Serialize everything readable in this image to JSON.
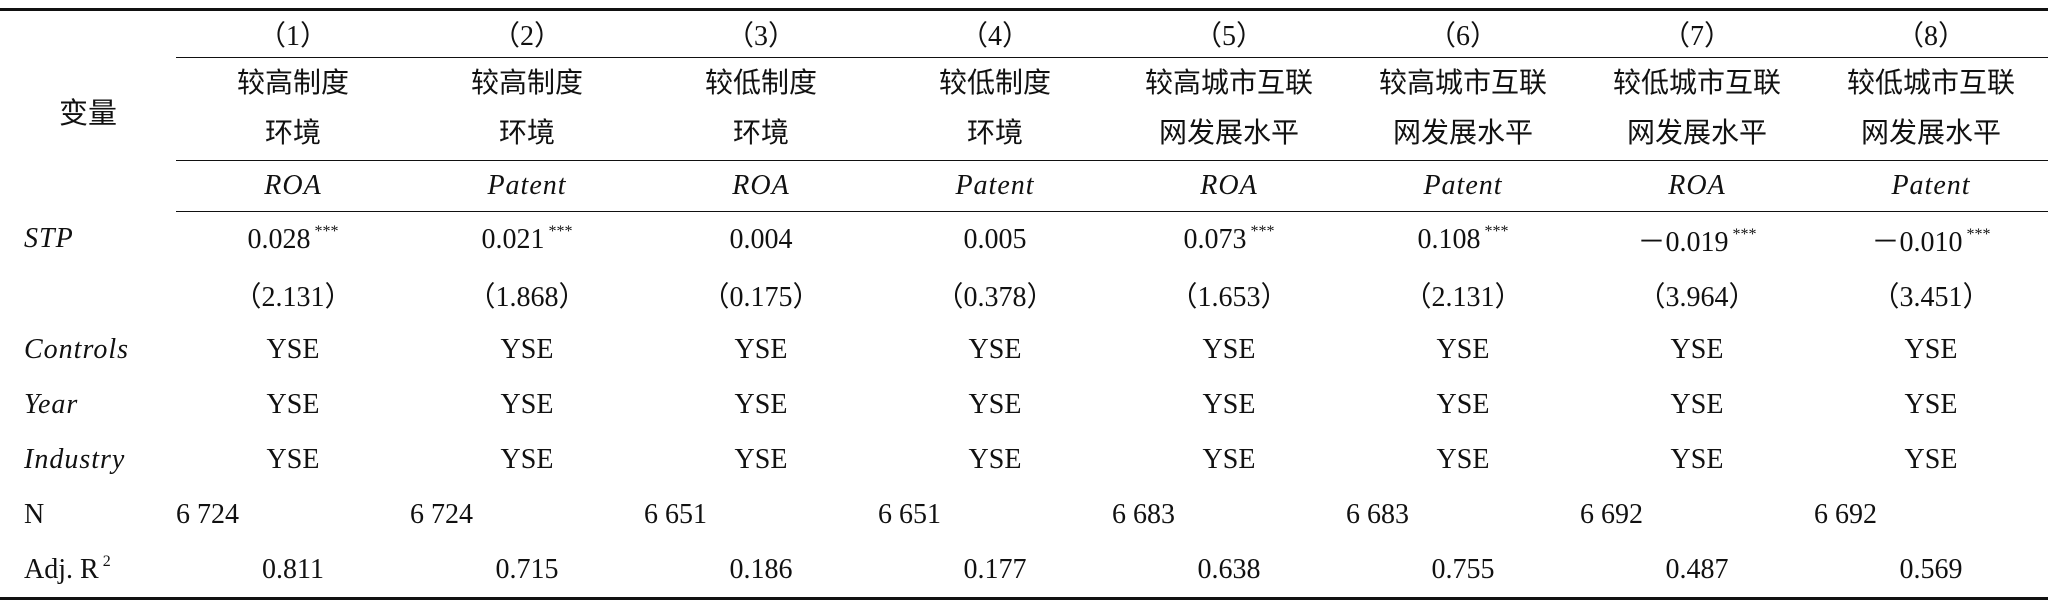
{
  "table": {
    "row_header": "变量",
    "columns": [
      {
        "number": "（1）",
        "group": [
          "较高制度",
          "环境"
        ],
        "dep": "ROA"
      },
      {
        "number": "（2）",
        "group": [
          "较高制度",
          "环境"
        ],
        "dep": "Patent"
      },
      {
        "number": "（3）",
        "group": [
          "较低制度",
          "环境"
        ],
        "dep": "ROA"
      },
      {
        "number": "（4）",
        "group": [
          "较低制度",
          "环境"
        ],
        "dep": "Patent"
      },
      {
        "number": "（5）",
        "group": [
          "较高城市互联",
          "网发展水平"
        ],
        "dep": "ROA"
      },
      {
        "number": "（6）",
        "group": [
          "较高城市互联",
          "网发展水平"
        ],
        "dep": "Patent"
      },
      {
        "number": "（7）",
        "group": [
          "较低城市互联",
          "网发展水平"
        ],
        "dep": "ROA"
      },
      {
        "number": "（8）",
        "group": [
          "较低城市互联",
          "网发展水平"
        ],
        "dep": "Patent"
      }
    ],
    "rows": [
      {
        "label": "STP",
        "italic": true,
        "cells": [
          {
            "value": "0.028",
            "stars": "***"
          },
          {
            "value": "0.021",
            "stars": "***"
          },
          {
            "value": "0.004"
          },
          {
            "value": "0.005"
          },
          {
            "value": "0.073",
            "stars": "***"
          },
          {
            "value": "0.108",
            "stars": "***"
          },
          {
            "value": "－0.019",
            "stars": "***"
          },
          {
            "value": "－0.010",
            "stars": "***"
          }
        ]
      },
      {
        "cells": [
          {
            "value": "（2.131）"
          },
          {
            "value": "（1.868）"
          },
          {
            "value": "（0.175）"
          },
          {
            "value": "（0.378）"
          },
          {
            "value": "（1.653）"
          },
          {
            "value": "（2.131）"
          },
          {
            "value": "（3.964）"
          },
          {
            "value": "（3.451）"
          }
        ]
      },
      {
        "label": "Controls",
        "italic": true,
        "cells": [
          {
            "value": "YSE"
          },
          {
            "value": "YSE"
          },
          {
            "value": "YSE"
          },
          {
            "value": "YSE"
          },
          {
            "value": "YSE"
          },
          {
            "value": "YSE"
          },
          {
            "value": "YSE"
          },
          {
            "value": "YSE"
          }
        ]
      },
      {
        "label": "Year",
        "italic": true,
        "cells": [
          {
            "value": "YSE"
          },
          {
            "value": "YSE"
          },
          {
            "value": "YSE"
          },
          {
            "value": "YSE"
          },
          {
            "value": "YSE"
          },
          {
            "value": "YSE"
          },
          {
            "value": "YSE"
          },
          {
            "value": "YSE"
          }
        ]
      },
      {
        "label": "Industry",
        "italic": true,
        "cells": [
          {
            "value": "YSE"
          },
          {
            "value": "YSE"
          },
          {
            "value": "YSE"
          },
          {
            "value": "YSE"
          },
          {
            "value": "YSE"
          },
          {
            "value": "YSE"
          },
          {
            "value": "YSE"
          },
          {
            "value": "YSE"
          }
        ]
      },
      {
        "label": "N",
        "left_aligned": true,
        "cells": [
          {
            "value": "6 724"
          },
          {
            "value": "6 724"
          },
          {
            "value": "6 651"
          },
          {
            "value": "6 651"
          },
          {
            "value": "6 683"
          },
          {
            "value": "6 683"
          },
          {
            "value": "6 692"
          },
          {
            "value": "6 692"
          }
        ]
      },
      {
        "label": "Adj. R",
        "label_sup": "2",
        "cells": [
          {
            "value": "0.811"
          },
          {
            "value": "0.715"
          },
          {
            "value": "0.186"
          },
          {
            "value": "0.177"
          },
          {
            "value": "0.638"
          },
          {
            "value": "0.755"
          },
          {
            "value": "0.487"
          },
          {
            "value": "0.569"
          }
        ]
      }
    ]
  }
}
